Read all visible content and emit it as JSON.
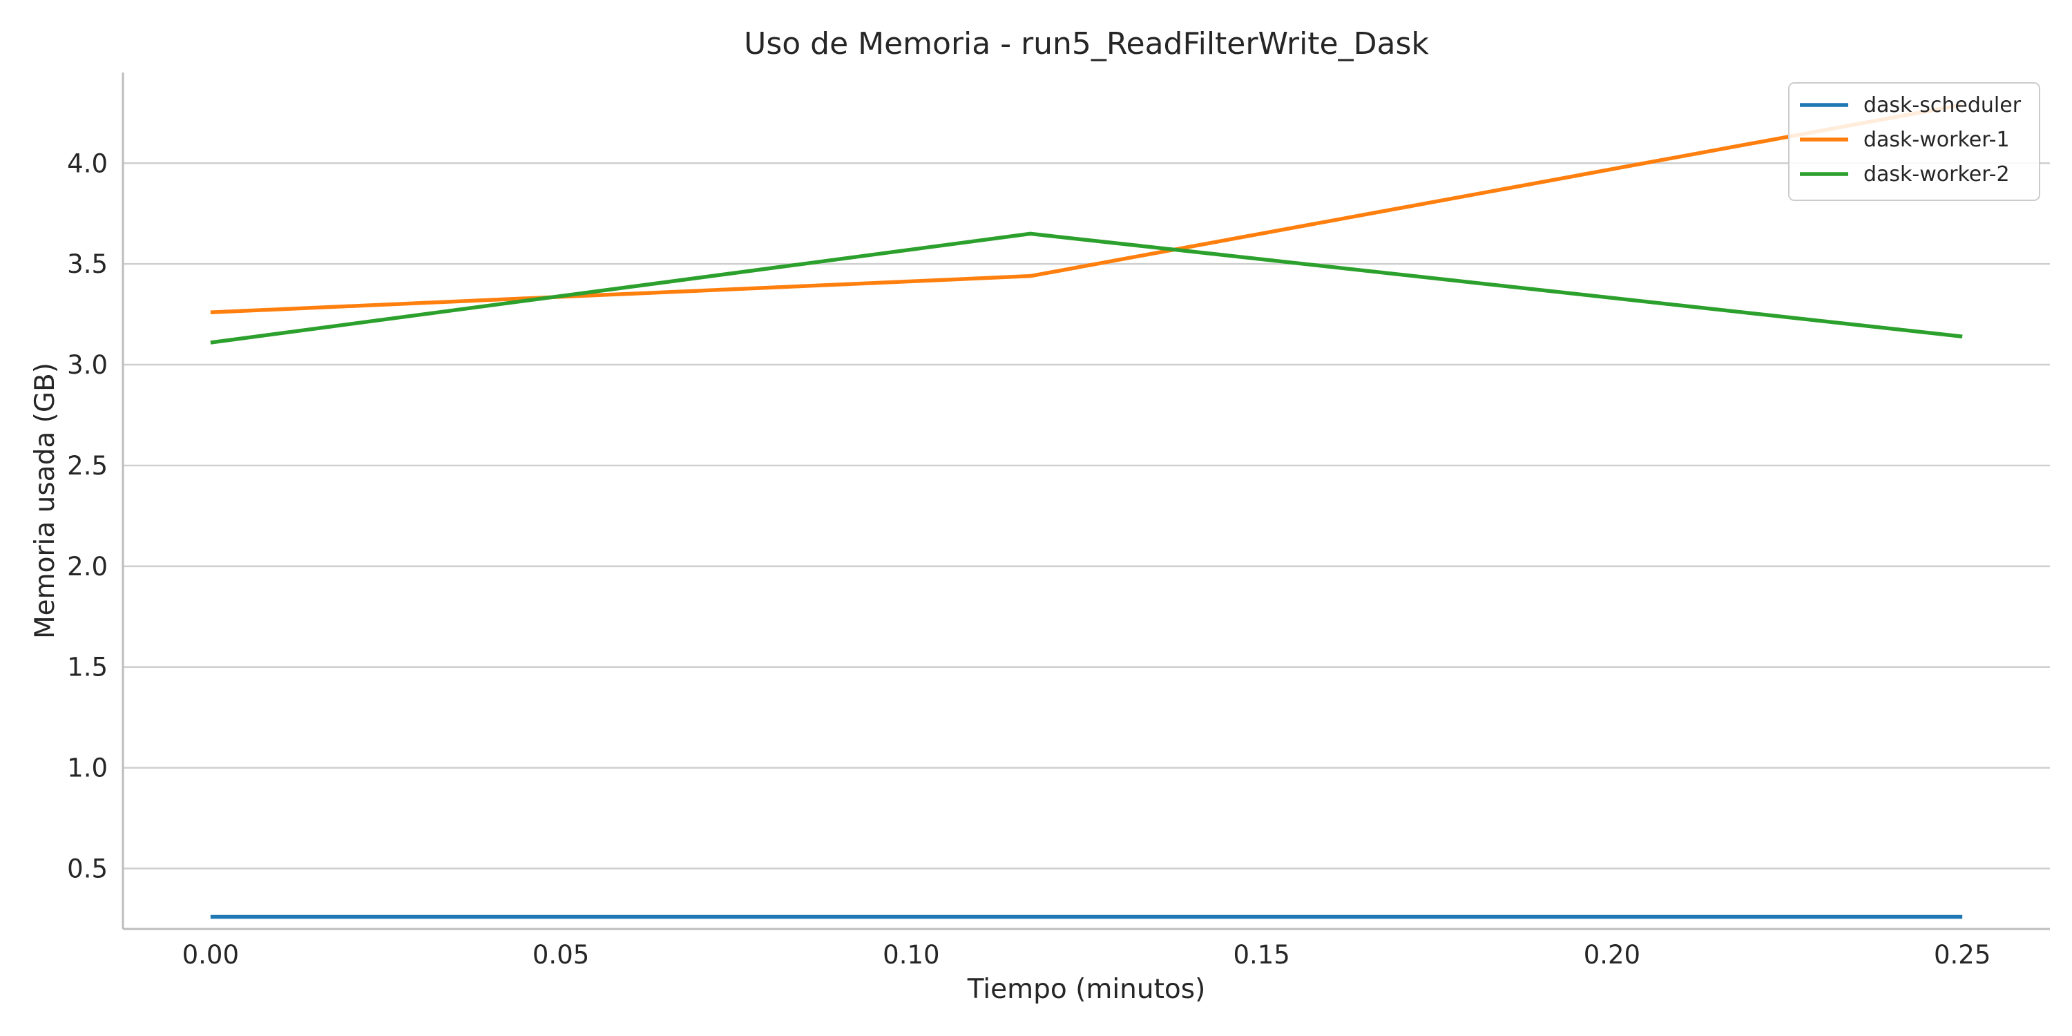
{
  "chart_data": {
    "type": "line",
    "title": "Uso de Memoria - run5_ReadFilterWrite_Dask",
    "xlabel": "Tiempo (minutos)",
    "ylabel": "Memoria usada (GB)",
    "xlim": [
      -0.0125,
      0.2625
    ],
    "ylim": [
      0.2,
      4.45
    ],
    "xticks": [
      0.0,
      0.05,
      0.1,
      0.15,
      0.2,
      0.25
    ],
    "xtick_labels": [
      "0.00",
      "0.05",
      "0.10",
      "0.15",
      "0.20",
      "0.25"
    ],
    "yticks": [
      0.5,
      1.0,
      1.5,
      2.0,
      2.5,
      3.0,
      3.5,
      4.0
    ],
    "ytick_labels": [
      "0.5",
      "1.0",
      "1.5",
      "2.0",
      "2.5",
      "3.0",
      "3.5",
      "4.0"
    ],
    "grid": "horizontal",
    "legend_position": "top-right",
    "series": [
      {
        "name": "dask-scheduler",
        "color": "#1f77b4",
        "x": [
          0.0,
          0.117,
          0.25
        ],
        "y": [
          0.26,
          0.26,
          0.26
        ]
      },
      {
        "name": "dask-worker-1",
        "color": "#ff7f0e",
        "x": [
          0.0,
          0.117,
          0.25
        ],
        "y": [
          3.26,
          3.44,
          4.29
        ]
      },
      {
        "name": "dask-worker-2",
        "color": "#2ca02c",
        "x": [
          0.0,
          0.117,
          0.25
        ],
        "y": [
          3.11,
          3.65,
          3.14
        ]
      }
    ]
  }
}
